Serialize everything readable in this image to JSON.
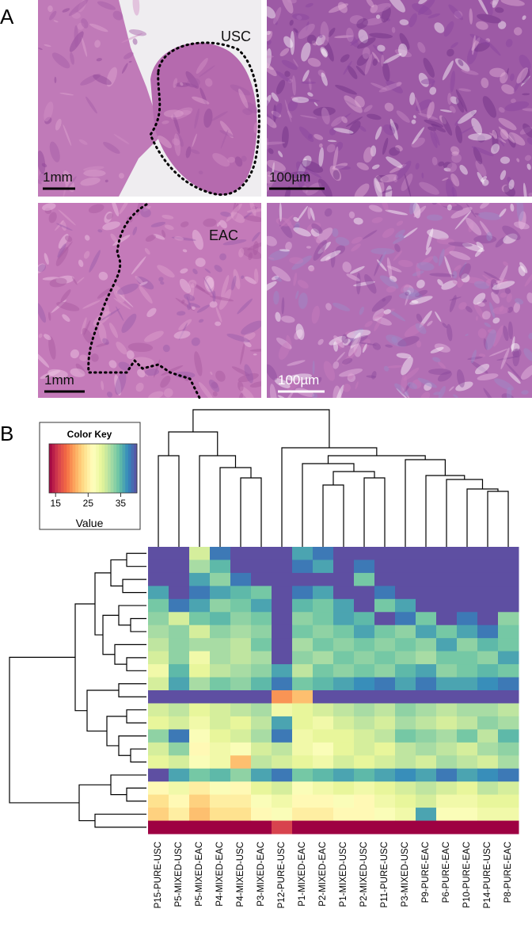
{
  "panels": {
    "labels": [
      "A",
      "B"
    ],
    "images": [
      {
        "annotation": "USC",
        "scale_bar": "1mm"
      },
      {
        "scale_bar": "100µm"
      },
      {
        "annotation": "EAC",
        "scale_bar": "1mm"
      },
      {
        "scale_bar": "100µm"
      }
    ]
  },
  "chart_data": {
    "type": "heatmap",
    "colorbar_title": "Color Key",
    "colorbar_label": "Value",
    "zlim": [
      13,
      40
    ],
    "zticks": [
      15,
      25,
      35
    ],
    "colormap": [
      "#9e0142",
      "#d53e4f",
      "#f46d43",
      "#fdae61",
      "#fee08b",
      "#ffffbf",
      "#e6f598",
      "#abdda4",
      "#66c2a5",
      "#3288bd",
      "#5e4fa2"
    ],
    "categories": [
      "P15-PURE-USC",
      "P5-MIXED-USC",
      "P5-MIXED-EAC",
      "P4-MIXED-EAC",
      "P4-MIXED-USC",
      "P3-MIXED-EAC",
      "P12-PURE-USC",
      "P1-MIXED-EAC",
      "P2-MIXED-EAC",
      "P1-MIXED-USC",
      "P2-MIXED-USC",
      "P11-PURE-USC",
      "P3-MIXED-USC",
      "P9-PURE-EAC",
      "P6-PURE-EAC",
      "P10-PURE-EAC",
      "P14-PURE-USC",
      "P8-PURE-EAC"
    ],
    "values": [
      [
        40,
        40,
        30,
        38,
        40,
        40,
        40,
        36,
        38,
        40,
        40,
        40,
        40,
        40,
        40,
        40,
        40,
        40
      ],
      [
        40,
        40,
        32,
        35,
        40,
        40,
        40,
        38,
        36,
        40,
        38,
        40,
        40,
        40,
        40,
        40,
        40,
        40
      ],
      [
        40,
        40,
        36,
        33,
        38,
        40,
        40,
        40,
        40,
        40,
        34,
        40,
        40,
        40,
        40,
        40,
        40,
        40
      ],
      [
        36,
        40,
        38,
        36,
        35,
        34,
        40,
        38,
        36,
        40,
        40,
        38,
        40,
        40,
        40,
        40,
        40,
        40
      ],
      [
        34,
        38,
        36,
        33,
        34,
        36,
        40,
        35,
        34,
        36,
        40,
        34,
        36,
        40,
        40,
        40,
        40,
        40
      ],
      [
        33,
        30,
        34,
        35,
        33,
        34,
        40,
        33,
        34,
        36,
        35,
        40,
        38,
        34,
        40,
        38,
        40,
        33
      ],
      [
        32,
        33,
        30,
        33,
        32,
        33,
        40,
        34,
        33,
        34,
        36,
        34,
        33,
        36,
        34,
        36,
        38,
        34
      ],
      [
        31,
        33,
        32,
        32,
        31,
        34,
        40,
        32,
        34,
        33,
        34,
        33,
        34,
        33,
        36,
        33,
        35,
        34
      ],
      [
        30,
        33,
        28,
        32,
        31,
        32,
        40,
        33,
        32,
        34,
        33,
        34,
        33,
        32,
        34,
        34,
        33,
        36
      ],
      [
        28,
        35,
        29,
        31,
        32,
        33,
        36,
        31,
        34,
        33,
        34,
        33,
        35,
        36,
        33,
        34,
        35,
        34
      ],
      [
        30,
        36,
        32,
        34,
        33,
        35,
        38,
        34,
        35,
        36,
        37,
        38,
        36,
        38,
        36,
        36,
        37,
        38
      ],
      [
        40,
        40,
        40,
        40,
        40,
        40,
        20,
        22,
        40,
        40,
        40,
        40,
        40,
        40,
        40,
        40,
        40,
        40
      ],
      [
        30,
        31,
        29,
        30,
        31,
        32,
        28,
        29,
        30,
        31,
        32,
        31,
        33,
        32,
        31,
        32,
        32,
        31
      ],
      [
        29,
        30,
        28,
        30,
        29,
        31,
        36,
        29,
        28,
        30,
        31,
        30,
        32,
        31,
        30,
        31,
        33,
        32
      ],
      [
        33,
        38,
        27,
        29,
        30,
        32,
        38,
        28,
        29,
        29,
        30,
        31,
        34,
        33,
        32,
        34,
        31,
        35
      ],
      [
        30,
        33,
        26,
        28,
        27,
        30,
        31,
        28,
        27,
        29,
        30,
        29,
        31,
        32,
        31,
        30,
        32,
        33
      ],
      [
        29,
        30,
        27,
        28,
        22,
        31,
        30,
        29,
        28,
        30,
        29,
        30,
        31,
        30,
        32,
        31,
        30,
        32
      ],
      [
        40,
        36,
        34,
        35,
        33,
        36,
        38,
        34,
        35,
        36,
        35,
        36,
        37,
        36,
        38,
        36,
        37,
        38
      ],
      [
        26,
        28,
        25,
        27,
        26,
        29,
        30,
        27,
        28,
        29,
        28,
        29,
        30,
        31,
        30,
        29,
        31,
        30
      ],
      [
        24,
        26,
        23,
        25,
        25,
        27,
        28,
        26,
        26,
        27,
        26,
        28,
        29,
        30,
        28,
        28,
        29,
        29
      ],
      [
        23,
        25,
        22,
        24,
        24,
        26,
        27,
        25,
        25,
        26,
        26,
        27,
        28,
        36,
        27,
        27,
        28,
        28
      ],
      [
        12,
        12,
        12,
        12,
        12,
        13,
        16,
        12,
        12,
        12,
        12,
        12,
        12,
        12,
        12,
        12,
        12,
        12
      ]
    ]
  }
}
